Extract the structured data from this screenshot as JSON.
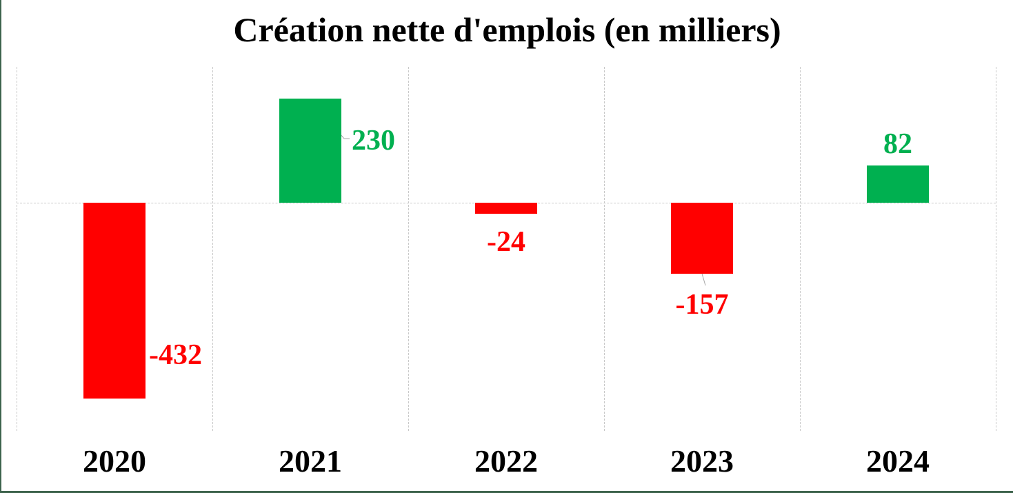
{
  "chart_data": {
    "type": "bar",
    "title": "Création nette d'emplois (en milliers)",
    "categories": [
      "2020",
      "2021",
      "2022",
      "2023",
      "2024"
    ],
    "values": [
      -432,
      230,
      -24,
      -157,
      82
    ],
    "points": [
      {
        "category": "2020",
        "value": -432,
        "label": "-432",
        "label_placement": "right"
      },
      {
        "category": "2021",
        "value": 230,
        "label": "230",
        "label_placement": "callout-right"
      },
      {
        "category": "2022",
        "value": -24,
        "label": "-24",
        "label_placement": "below"
      },
      {
        "category": "2023",
        "value": -157,
        "label": "-157",
        "label_placement": "below-callout"
      },
      {
        "category": "2024",
        "value": 82,
        "label": "82",
        "label_placement": "above"
      }
    ],
    "xlabel": "",
    "ylabel": "",
    "ylim": [
      -504,
      300
    ],
    "legend": "none",
    "grid": "vertical dashed gridlines + dashed zero line, no y-axis ticks",
    "colors": {
      "positive": "#00B050",
      "negative": "#FF0000",
      "gridline": "#C8C8C8",
      "leader_line": "#A6A6A6",
      "frame_border": "#3E644D",
      "title_text": "#000000",
      "axis_text": "#000000"
    }
  }
}
